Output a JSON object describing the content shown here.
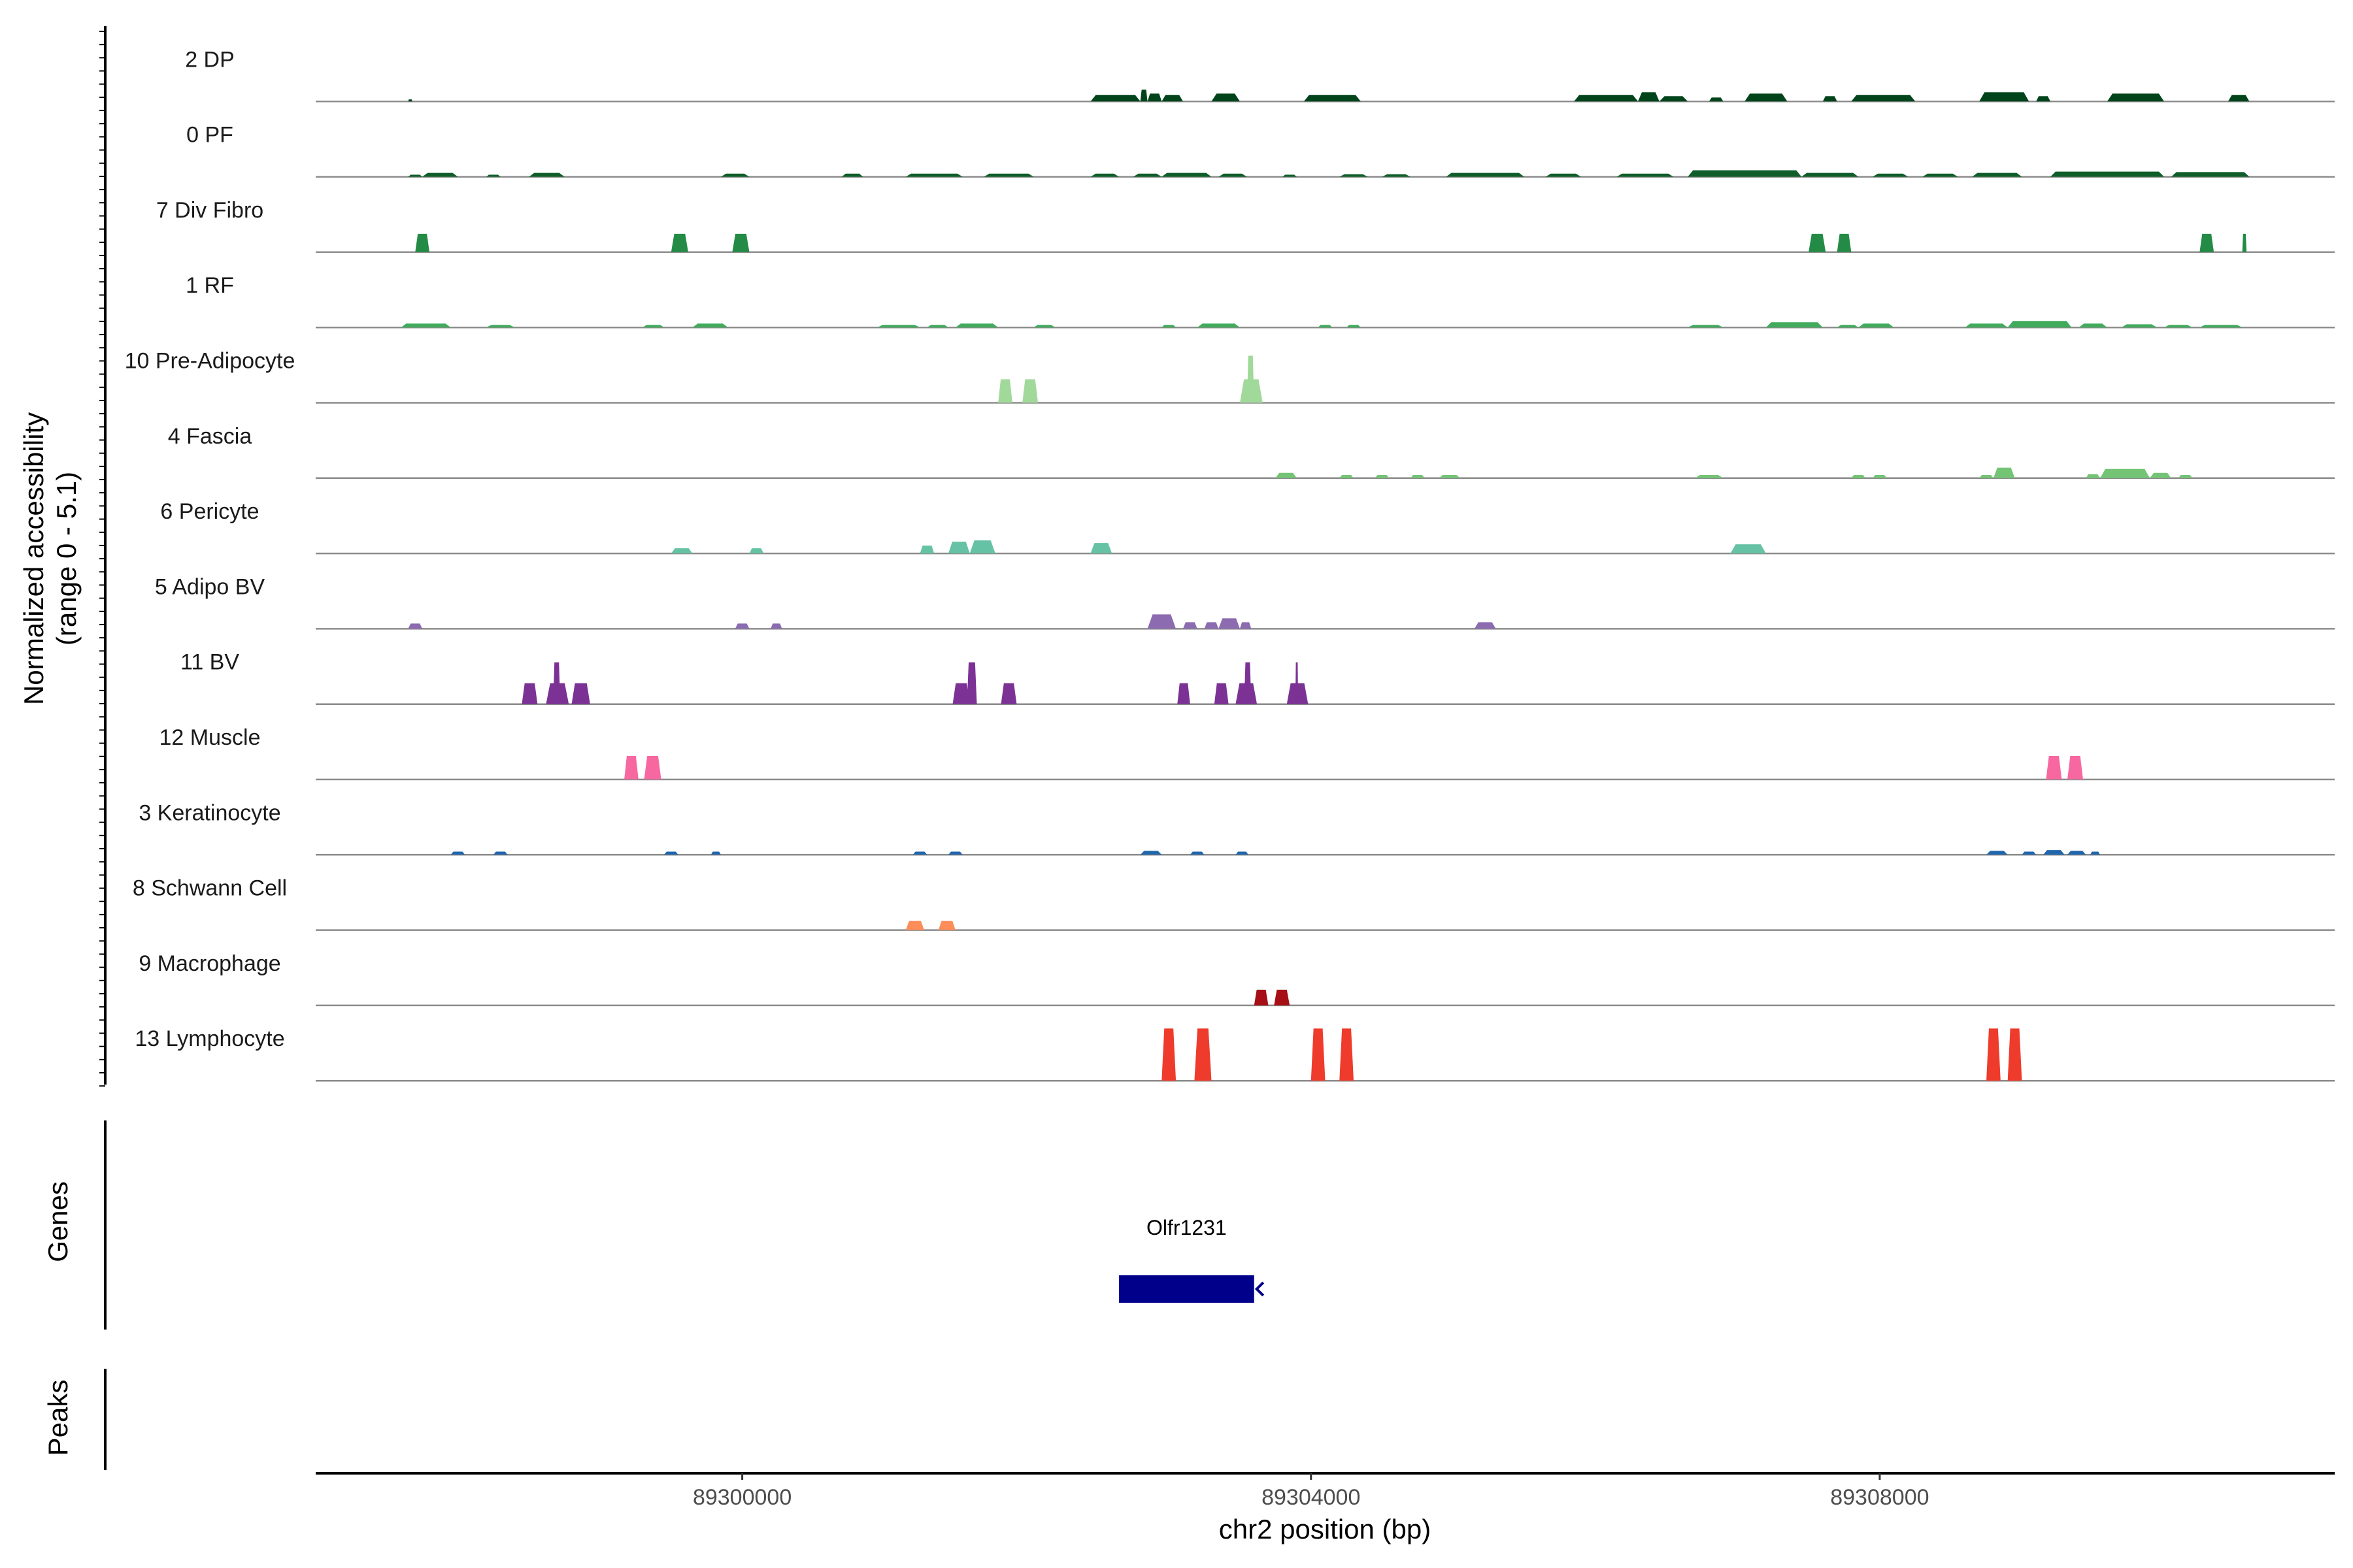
{
  "chart_data": {
    "type": "area",
    "title": "",
    "chromosome": "chr2",
    "xlabel": "chr2 position (bp)",
    "ylabel_line1": "Normalized accessibility",
    "ylabel_line2": "(range 0 - 5.1)",
    "y_range": [
      0,
      5.1
    ],
    "xlim": [
      89297000,
      89311200
    ],
    "x_ticks": [
      89300000,
      89304000,
      89308000
    ],
    "x_tick_labels": [
      "89300000",
      "89304000",
      "89308000"
    ],
    "tracks": [
      {
        "name": "2 DP",
        "color": "#00441b",
        "peaks": [
          {
            "start": 89297650,
            "end": 89297680,
            "value": 0.08
          },
          {
            "start": 89302450,
            "end": 89302800,
            "value": 0.25
          },
          {
            "start": 89302800,
            "end": 89302850,
            "value": 0.45
          },
          {
            "start": 89302850,
            "end": 89302950,
            "value": 0.3
          },
          {
            "start": 89302950,
            "end": 89303100,
            "value": 0.25
          },
          {
            "start": 89303300,
            "end": 89303500,
            "value": 0.3
          },
          {
            "start": 89303950,
            "end": 89304350,
            "value": 0.25
          },
          {
            "start": 89305850,
            "end": 89306300,
            "value": 0.25
          },
          {
            "start": 89306300,
            "end": 89306450,
            "value": 0.35
          },
          {
            "start": 89306450,
            "end": 89306650,
            "value": 0.2
          },
          {
            "start": 89306800,
            "end": 89306900,
            "value": 0.15
          },
          {
            "start": 89307050,
            "end": 89307350,
            "value": 0.3
          },
          {
            "start": 89307600,
            "end": 89307700,
            "value": 0.2
          },
          {
            "start": 89307800,
            "end": 89308250,
            "value": 0.25
          },
          {
            "start": 89308700,
            "end": 89309050,
            "value": 0.35
          },
          {
            "start": 89309100,
            "end": 89309200,
            "value": 0.2
          },
          {
            "start": 89309600,
            "end": 89310000,
            "value": 0.3
          },
          {
            "start": 89310450,
            "end": 89310600,
            "value": 0.25
          }
        ]
      },
      {
        "name": "0 PF",
        "color": "#0f5e2a",
        "peaks": [
          {
            "start": 89297650,
            "end": 89297750,
            "value": 0.08
          },
          {
            "start": 89297750,
            "end": 89298000,
            "value": 0.15
          },
          {
            "start": 89298200,
            "end": 89298300,
            "value": 0.08
          },
          {
            "start": 89298500,
            "end": 89298750,
            "value": 0.15
          },
          {
            "start": 89299850,
            "end": 89300050,
            "value": 0.12
          },
          {
            "start": 89300700,
            "end": 89300850,
            "value": 0.12
          },
          {
            "start": 89301150,
            "end": 89301550,
            "value": 0.12
          },
          {
            "start": 89301700,
            "end": 89302050,
            "value": 0.12
          },
          {
            "start": 89302450,
            "end": 89302650,
            "value": 0.12
          },
          {
            "start": 89302750,
            "end": 89302950,
            "value": 0.12
          },
          {
            "start": 89302950,
            "end": 89303300,
            "value": 0.15
          },
          {
            "start": 89303350,
            "end": 89303550,
            "value": 0.12
          },
          {
            "start": 89303800,
            "end": 89303900,
            "value": 0.08
          },
          {
            "start": 89304200,
            "end": 89304400,
            "value": 0.1
          },
          {
            "start": 89304500,
            "end": 89304700,
            "value": 0.1
          },
          {
            "start": 89304950,
            "end": 89305500,
            "value": 0.15
          },
          {
            "start": 89305650,
            "end": 89305900,
            "value": 0.12
          },
          {
            "start": 89306150,
            "end": 89306550,
            "value": 0.12
          },
          {
            "start": 89306650,
            "end": 89307450,
            "value": 0.25
          },
          {
            "start": 89307450,
            "end": 89307850,
            "value": 0.15
          },
          {
            "start": 89307950,
            "end": 89308200,
            "value": 0.12
          },
          {
            "start": 89308300,
            "end": 89308550,
            "value": 0.12
          },
          {
            "start": 89308650,
            "end": 89309000,
            "value": 0.15
          },
          {
            "start": 89309200,
            "end": 89310000,
            "value": 0.2
          },
          {
            "start": 89310050,
            "end": 89310600,
            "value": 0.18
          }
        ]
      },
      {
        "name": "7 Div Fibro",
        "color": "#238b45",
        "peaks": [
          {
            "start": 89297700,
            "end": 89297800,
            "value": 0.7
          },
          {
            "start": 89299500,
            "end": 89299620,
            "value": 0.7
          },
          {
            "start": 89299930,
            "end": 89300050,
            "value": 0.7
          },
          {
            "start": 89307500,
            "end": 89307620,
            "value": 0.7
          },
          {
            "start": 89307700,
            "end": 89307800,
            "value": 0.7
          },
          {
            "start": 89310250,
            "end": 89310350,
            "value": 0.7
          },
          {
            "start": 89310550,
            "end": 89310580,
            "value": 0.7
          }
        ]
      },
      {
        "name": "1 RF",
        "color": "#41ab5d",
        "peaks": [
          {
            "start": 89297600,
            "end": 89297950,
            "value": 0.15
          },
          {
            "start": 89298200,
            "end": 89298400,
            "value": 0.1
          },
          {
            "start": 89299300,
            "end": 89299450,
            "value": 0.1
          },
          {
            "start": 89299650,
            "end": 89299900,
            "value": 0.15
          },
          {
            "start": 89300950,
            "end": 89301250,
            "value": 0.1
          },
          {
            "start": 89301300,
            "end": 89301450,
            "value": 0.1
          },
          {
            "start": 89301500,
            "end": 89301800,
            "value": 0.15
          },
          {
            "start": 89302050,
            "end": 89302200,
            "value": 0.1
          },
          {
            "start": 89302950,
            "end": 89303050,
            "value": 0.1
          },
          {
            "start": 89303200,
            "end": 89303500,
            "value": 0.15
          },
          {
            "start": 89304050,
            "end": 89304150,
            "value": 0.1
          },
          {
            "start": 89304250,
            "end": 89304350,
            "value": 0.1
          },
          {
            "start": 89306650,
            "end": 89306900,
            "value": 0.1
          },
          {
            "start": 89307200,
            "end": 89307600,
            "value": 0.2
          },
          {
            "start": 89307700,
            "end": 89307850,
            "value": 0.1
          },
          {
            "start": 89307850,
            "end": 89308100,
            "value": 0.15
          },
          {
            "start": 89308600,
            "end": 89308900,
            "value": 0.15
          },
          {
            "start": 89308900,
            "end": 89309350,
            "value": 0.25
          },
          {
            "start": 89309400,
            "end": 89309600,
            "value": 0.15
          },
          {
            "start": 89309700,
            "end": 89309950,
            "value": 0.12
          },
          {
            "start": 89310000,
            "end": 89310200,
            "value": 0.1
          },
          {
            "start": 89310250,
            "end": 89310550,
            "value": 0.1
          }
        ]
      },
      {
        "name": "10 Pre-Adipocyte",
        "color": "#a1d99b",
        "peaks": [
          {
            "start": 89301800,
            "end": 89301900,
            "value": 0.9
          },
          {
            "start": 89301970,
            "end": 89302080,
            "value": 0.9
          },
          {
            "start": 89303500,
            "end": 89303660,
            "value": 0.9
          },
          {
            "start": 89303550,
            "end": 89303600,
            "value": 1.8
          }
        ]
      },
      {
        "name": "4 Fascia",
        "color": "#74c476",
        "peaks": [
          {
            "start": 89303750,
            "end": 89303900,
            "value": 0.2
          },
          {
            "start": 89304200,
            "end": 89304300,
            "value": 0.12
          },
          {
            "start": 89304450,
            "end": 89304550,
            "value": 0.12
          },
          {
            "start": 89304700,
            "end": 89304800,
            "value": 0.12
          },
          {
            "start": 89304900,
            "end": 89305050,
            "value": 0.12
          },
          {
            "start": 89306700,
            "end": 89306900,
            "value": 0.12
          },
          {
            "start": 89307800,
            "end": 89307900,
            "value": 0.12
          },
          {
            "start": 89307950,
            "end": 89308050,
            "value": 0.12
          },
          {
            "start": 89308700,
            "end": 89308800,
            "value": 0.12
          },
          {
            "start": 89308800,
            "end": 89308950,
            "value": 0.4
          },
          {
            "start": 89309450,
            "end": 89309550,
            "value": 0.15
          },
          {
            "start": 89309550,
            "end": 89309900,
            "value": 0.35
          },
          {
            "start": 89309900,
            "end": 89310050,
            "value": 0.2
          },
          {
            "start": 89310100,
            "end": 89310200,
            "value": 0.12
          }
        ]
      },
      {
        "name": "6 Pericyte",
        "color": "#66c2a4",
        "peaks": [
          {
            "start": 89299500,
            "end": 89299650,
            "value": 0.2
          },
          {
            "start": 89300050,
            "end": 89300150,
            "value": 0.2
          },
          {
            "start": 89301250,
            "end": 89301350,
            "value": 0.3
          },
          {
            "start": 89301450,
            "end": 89301600,
            "value": 0.45
          },
          {
            "start": 89301600,
            "end": 89301780,
            "value": 0.5
          },
          {
            "start": 89302450,
            "end": 89302600,
            "value": 0.4
          },
          {
            "start": 89306950,
            "end": 89307200,
            "value": 0.35
          }
        ]
      },
      {
        "name": "5 Adipo BV",
        "color": "#8c6bb1",
        "peaks": [
          {
            "start": 89297650,
            "end": 89297750,
            "value": 0.2
          },
          {
            "start": 89299950,
            "end": 89300050,
            "value": 0.2
          },
          {
            "start": 89300200,
            "end": 89300280,
            "value": 0.2
          },
          {
            "start": 89302850,
            "end": 89303050,
            "value": 0.55
          },
          {
            "start": 89303100,
            "end": 89303200,
            "value": 0.25
          },
          {
            "start": 89303250,
            "end": 89303350,
            "value": 0.25
          },
          {
            "start": 89303350,
            "end": 89303500,
            "value": 0.4
          },
          {
            "start": 89303500,
            "end": 89303580,
            "value": 0.25
          },
          {
            "start": 89305150,
            "end": 89305300,
            "value": 0.25
          }
        ]
      },
      {
        "name": "11 BV",
        "color": "#7b3294",
        "peaks": [
          {
            "start": 89298450,
            "end": 89298560,
            "value": 0.8
          },
          {
            "start": 89298620,
            "end": 89298780,
            "value": 0.8
          },
          {
            "start": 89298670,
            "end": 89298720,
            "value": 1.6
          },
          {
            "start": 89298800,
            "end": 89298930,
            "value": 0.8
          },
          {
            "start": 89301480,
            "end": 89301600,
            "value": 0.8
          },
          {
            "start": 89301580,
            "end": 89301650,
            "value": 1.6
          },
          {
            "start": 89301820,
            "end": 89301930,
            "value": 0.8
          },
          {
            "start": 89303060,
            "end": 89303150,
            "value": 0.8
          },
          {
            "start": 89303320,
            "end": 89303420,
            "value": 0.8
          },
          {
            "start": 89303470,
            "end": 89303620,
            "value": 0.8
          },
          {
            "start": 89303530,
            "end": 89303580,
            "value": 1.6
          },
          {
            "start": 89303830,
            "end": 89303980,
            "value": 0.8
          },
          {
            "start": 89303890,
            "end": 89303910,
            "value": 1.6
          }
        ]
      },
      {
        "name": "12 Muscle",
        "color": "#f768a1",
        "peaks": [
          {
            "start": 89299170,
            "end": 89299270,
            "value": 0.9
          },
          {
            "start": 89299310,
            "end": 89299430,
            "value": 0.9
          },
          {
            "start": 89309170,
            "end": 89309280,
            "value": 0.9
          },
          {
            "start": 89309320,
            "end": 89309430,
            "value": 0.9
          }
        ]
      },
      {
        "name": "3 Keratinocyte",
        "color": "#2166ac",
        "peaks": [
          {
            "start": 89297950,
            "end": 89298050,
            "value": 0.12
          },
          {
            "start": 89298250,
            "end": 89298350,
            "value": 0.12
          },
          {
            "start": 89299450,
            "end": 89299550,
            "value": 0.12
          },
          {
            "start": 89299780,
            "end": 89299850,
            "value": 0.12
          },
          {
            "start": 89301200,
            "end": 89301300,
            "value": 0.12
          },
          {
            "start": 89301450,
            "end": 89301550,
            "value": 0.12
          },
          {
            "start": 89302800,
            "end": 89302950,
            "value": 0.15
          },
          {
            "start": 89303150,
            "end": 89303250,
            "value": 0.12
          },
          {
            "start": 89303470,
            "end": 89303560,
            "value": 0.12
          },
          {
            "start": 89308750,
            "end": 89308900,
            "value": 0.15
          },
          {
            "start": 89309000,
            "end": 89309100,
            "value": 0.12
          },
          {
            "start": 89309150,
            "end": 89309300,
            "value": 0.18
          },
          {
            "start": 89309320,
            "end": 89309450,
            "value": 0.15
          },
          {
            "start": 89309480,
            "end": 89309550,
            "value": 0.12
          }
        ]
      },
      {
        "name": "8 Schwann Cell",
        "color": "#fc8d59",
        "peaks": [
          {
            "start": 89301150,
            "end": 89301280,
            "value": 0.35
          },
          {
            "start": 89301380,
            "end": 89301500,
            "value": 0.35
          }
        ]
      },
      {
        "name": "9 Macrophage",
        "color": "#a50f15",
        "peaks": [
          {
            "start": 89303600,
            "end": 89303700,
            "value": 0.6
          },
          {
            "start": 89303740,
            "end": 89303850,
            "value": 0.6
          }
        ]
      },
      {
        "name": "13 Lymphocyte",
        "color": "#ef3b2c",
        "peaks": [
          {
            "start": 89302950,
            "end": 89303050,
            "value": 2.0
          },
          {
            "start": 89303180,
            "end": 89303300,
            "value": 2.0
          },
          {
            "start": 89304000,
            "end": 89304100,
            "value": 2.0
          },
          {
            "start": 89304200,
            "end": 89304300,
            "value": 2.0
          },
          {
            "start": 89308750,
            "end": 89308850,
            "value": 2.0
          },
          {
            "start": 89308900,
            "end": 89309000,
            "value": 2.0
          }
        ]
      }
    ],
    "genes_track": {
      "label": "Genes",
      "genes": [
        {
          "name": "Olfr1231",
          "start": 89302650,
          "end": 89303600,
          "strand": "-",
          "color": "#00008b"
        }
      ]
    },
    "peaks_track": {
      "label": "Peaks",
      "peaks": []
    }
  }
}
